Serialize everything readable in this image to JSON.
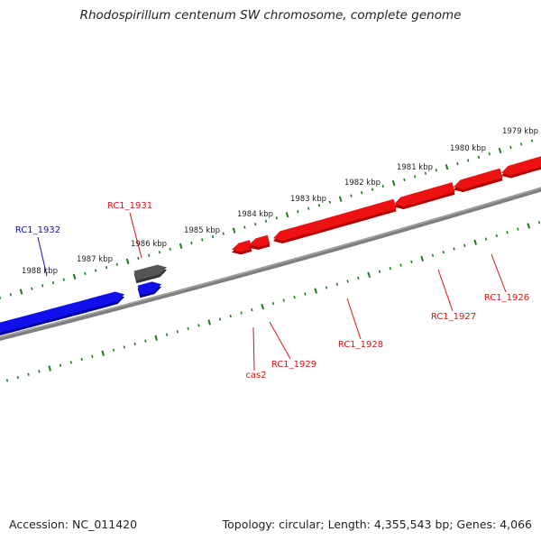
{
  "title": "Rhodospirillum centenum SW chromosome, complete genome",
  "footer": {
    "accession": "Accession: NC_011420",
    "summary": "Topology: circular; Length: 4,355,543 bp; Genes: 4,066"
  },
  "colors": {
    "forward": "#ee1111",
    "reverse": "#1010ee",
    "other": "#555555",
    "backbone": "#7f7f7f",
    "ticks": "#1f7a1f",
    "label_forward": "#dd1111",
    "label_reverse": "#1111bb"
  },
  "scale": {
    "ticks": [
      {
        "label": "1979 kbp"
      },
      {
        "label": "1980 kbp"
      },
      {
        "label": "1981 kbp"
      },
      {
        "label": "1982 kbp"
      },
      {
        "label": "1983 kbp"
      },
      {
        "label": "1984 kbp"
      },
      {
        "label": "1985 kbp"
      },
      {
        "label": "1986 kbp"
      },
      {
        "label": "1987 kbp"
      },
      {
        "label": "1988 kbp"
      }
    ]
  },
  "genes": [
    {
      "label": "RC1_1932",
      "strand": "reverse"
    },
    {
      "label": "RC1_1931",
      "strand": "other"
    },
    {
      "label": "cas2",
      "strand": "forward"
    },
    {
      "label": "RC1_1929",
      "strand": "forward"
    },
    {
      "label": "RC1_1928",
      "strand": "forward"
    },
    {
      "label": "RC1_1927",
      "strand": "forward"
    },
    {
      "label": "RC1_1926",
      "strand": "forward"
    }
  ]
}
